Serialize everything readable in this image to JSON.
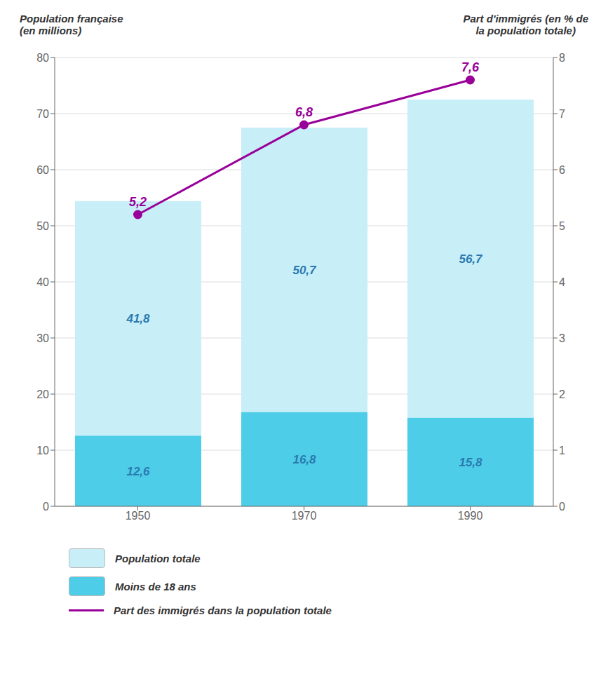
{
  "chart_data": {
    "type": "bar",
    "categories": [
      "1950",
      "1970",
      "1990"
    ],
    "stacked": true,
    "data_labels": true,
    "grid": true,
    "ylabel": "Population française\n(en millions)",
    "y2label": "Part d'immigrés (en % de\nla population totale)",
    "ylim": [
      0,
      80
    ],
    "yticks": [
      0,
      10,
      20,
      30,
      40,
      50,
      60,
      70,
      80
    ],
    "y2lim": [
      0,
      8
    ],
    "y2ticks": [
      0,
      1,
      2,
      3,
      4,
      5,
      6,
      7,
      8
    ],
    "series": [
      {
        "name": "Population totale",
        "type": "bar",
        "color": "#c8eef8",
        "values": [
          41.8,
          50.7,
          56.7
        ],
        "value_labels": [
          "41,8",
          "50,7",
          "56,7"
        ]
      },
      {
        "name": "Moins de 18 ans",
        "type": "bar",
        "color": "#4ecde8",
        "values": [
          12.6,
          16.8,
          15.8
        ],
        "value_labels": [
          "12,6",
          "16,8",
          "15,8"
        ]
      },
      {
        "name": "Part des immigrés dans la population totale",
        "type": "line",
        "axis": "y2",
        "color": "#990099",
        "marker": "circle",
        "values": [
          5.2,
          6.8,
          7.6
        ],
        "value_labels": [
          "5,2",
          "6,8",
          "7,6"
        ]
      }
    ]
  }
}
